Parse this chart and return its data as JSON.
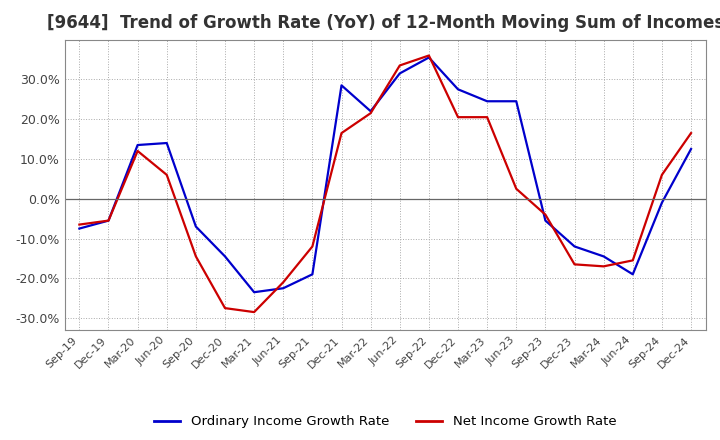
{
  "title": "[9644]  Trend of Growth Rate (YoY) of 12-Month Moving Sum of Incomes",
  "title_fontsize": 12,
  "ylim": [
    -0.33,
    0.4
  ],
  "yticks": [
    -0.3,
    -0.2,
    -0.1,
    0.0,
    0.1,
    0.2,
    0.3
  ],
  "legend_labels": [
    "Ordinary Income Growth Rate",
    "Net Income Growth Rate"
  ],
  "legend_colors": [
    "#0000cc",
    "#cc0000"
  ],
  "x_labels": [
    "Sep-19",
    "Dec-19",
    "Mar-20",
    "Jun-20",
    "Sep-20",
    "Dec-20",
    "Mar-21",
    "Jun-21",
    "Sep-21",
    "Dec-21",
    "Mar-22",
    "Jun-22",
    "Sep-22",
    "Dec-22",
    "Mar-23",
    "Jun-23",
    "Sep-23",
    "Dec-23",
    "Mar-24",
    "Jun-24",
    "Sep-24",
    "Dec-24"
  ],
  "ordinary_income": [
    -0.075,
    -0.055,
    0.135,
    0.14,
    -0.07,
    -0.145,
    -0.235,
    -0.225,
    -0.19,
    0.285,
    0.22,
    0.315,
    0.355,
    0.275,
    0.245,
    0.245,
    -0.055,
    -0.12,
    -0.145,
    -0.19,
    -0.01,
    0.125
  ],
  "net_income": [
    -0.065,
    -0.055,
    0.12,
    0.06,
    -0.145,
    -0.275,
    -0.285,
    -0.21,
    -0.12,
    0.165,
    0.215,
    0.335,
    0.36,
    0.205,
    0.205,
    0.025,
    -0.04,
    -0.165,
    -0.17,
    -0.155,
    0.06,
    0.165
  ],
  "line_width": 1.6,
  "background_color": "#ffffff",
  "grid_color": "#aaaaaa",
  "zero_line_color": "#666666"
}
